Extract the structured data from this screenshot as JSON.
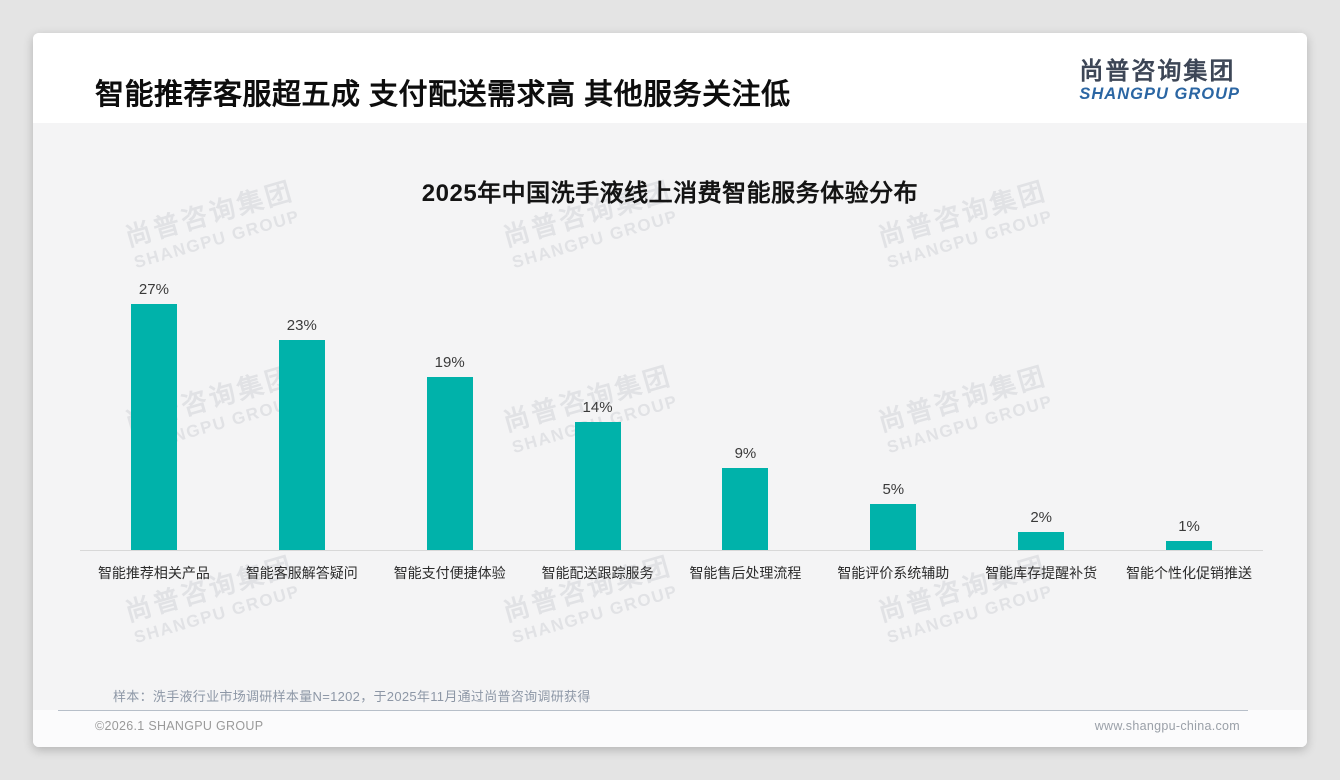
{
  "header": {
    "title": "智能推荐客服超五成 支付配送需求高 其他服务关注低",
    "logo_cn": "尚普咨询集团",
    "logo_en": "SHANGPU GROUP"
  },
  "chart_data": {
    "type": "bar",
    "title": "2025年中国洗手液线上消费智能服务体验分布",
    "categories": [
      "智能推荐相关产品",
      "智能客服解答疑问",
      "智能支付便捷体验",
      "智能配送跟踪服务",
      "智能售后处理流程",
      "智能评价系统辅助",
      "智能库存提醒补货",
      "智能个性化促销推送"
    ],
    "values": [
      27,
      23,
      19,
      14,
      9,
      5,
      2,
      1
    ],
    "value_labels": [
      "27%",
      "23%",
      "19%",
      "14%",
      "9%",
      "5%",
      "2%",
      "1%"
    ],
    "unit": "%",
    "xlabel": "",
    "ylabel": "",
    "ylim": [
      0,
      30
    ],
    "grid": false,
    "legend": "none",
    "bar_color": "#00b2aa"
  },
  "watermark": {
    "cn": "尚普咨询集团",
    "en": "SHANGPU GROUP"
  },
  "footnote": "样本：洗手液行业市场调研样本量N=1202，于2025年11月通过尚普咨询调研获得",
  "footer": {
    "copyright": "©2026.1 SHANGPU GROUP",
    "website": "www.shangpu-china.com"
  },
  "colors": {
    "bar": "#00b2aa",
    "content_bg": "#f4f4f5",
    "logo_cn": "#3d4656",
    "logo_en": "#2b66a3",
    "outer_bg": "#e4e4e4"
  }
}
